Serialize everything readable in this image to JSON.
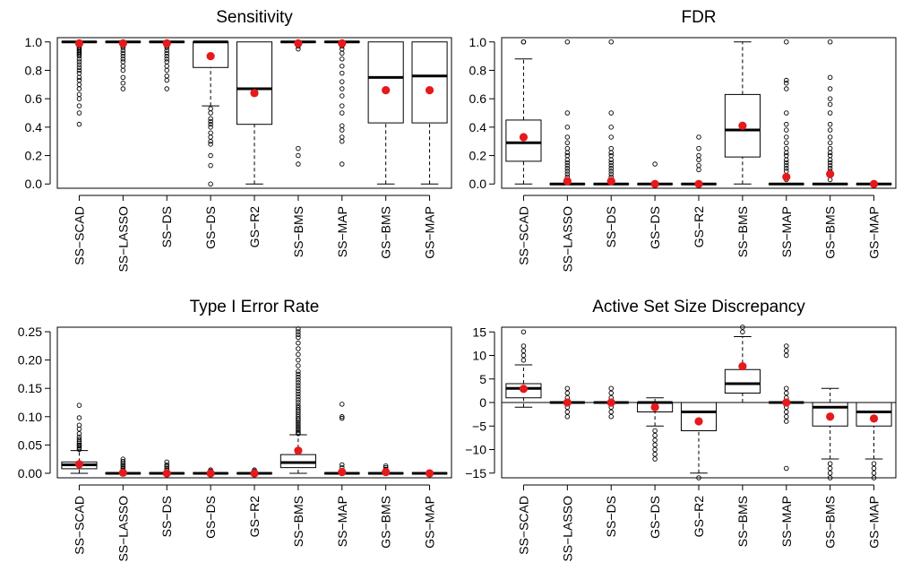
{
  "colors": {
    "box_stroke": "#000000",
    "mean_point": "#e41a1c",
    "outlier": "#000000"
  },
  "chart_data": [
    {
      "type": "boxplot",
      "title": "Sensitivity",
      "categories": [
        "SS−SCAD",
        "SS−LASSO",
        "SS−DS",
        "GS−DS",
        "GS−R2",
        "SS−BMS",
        "SS−MAP",
        "GS−BMS",
        "GS−MAP"
      ],
      "ylim": [
        -0.03,
        1.03
      ],
      "yticks": [
        0.0,
        0.2,
        0.4,
        0.6,
        0.8,
        1.0
      ],
      "ytick_labels": [
        "0.0",
        "0.2",
        "0.4",
        "0.6",
        "0.8",
        "1.0"
      ],
      "reference_line": null,
      "boxes": [
        {
          "lw": 1.0,
          "q1": 1.0,
          "med": 1.0,
          "q3": 1.0,
          "uw": 1.0,
          "mean": 0.99,
          "outliers": [
            0.42,
            0.5,
            0.55,
            0.6,
            0.63,
            0.67,
            0.7,
            0.73,
            0.75,
            0.78,
            0.8,
            0.82,
            0.84,
            0.86,
            0.88,
            0.9,
            0.91,
            0.92,
            0.93,
            0.94,
            0.95,
            0.96,
            0.97,
            0.98,
            0.985,
            0.99,
            0.995
          ]
        },
        {
          "lw": 1.0,
          "q1": 1.0,
          "med": 1.0,
          "q3": 1.0,
          "uw": 1.0,
          "mean": 0.99,
          "outliers": [
            0.67,
            0.71,
            0.75,
            0.8,
            0.83,
            0.86,
            0.88,
            0.9,
            0.92,
            0.94,
            0.96,
            0.97,
            0.98,
            0.99
          ]
        },
        {
          "lw": 1.0,
          "q1": 1.0,
          "med": 1.0,
          "q3": 1.0,
          "uw": 1.0,
          "mean": 0.99,
          "outliers": [
            0.67,
            0.73,
            0.76,
            0.8,
            0.83,
            0.86,
            0.88,
            0.9,
            0.92,
            0.94,
            0.96,
            0.97,
            0.98,
            0.99
          ]
        },
        {
          "lw": 0.55,
          "q1": 0.82,
          "med": 1.0,
          "q3": 1.0,
          "uw": 1.0,
          "mean": 0.9,
          "outliers": [
            0.0,
            0.13,
            0.2,
            0.28,
            0.3,
            0.33,
            0.36,
            0.4,
            0.42,
            0.44,
            0.46,
            0.5,
            0.53
          ]
        },
        {
          "lw": 0.0,
          "q1": 0.42,
          "med": 0.67,
          "q3": 1.0,
          "uw": 1.0,
          "mean": 0.64,
          "outliers": []
        },
        {
          "lw": 1.0,
          "q1": 1.0,
          "med": 1.0,
          "q3": 1.0,
          "uw": 1.0,
          "mean": 0.99,
          "outliers": [
            0.14,
            0.2,
            0.25,
            0.95,
            0.97,
            0.98
          ]
        },
        {
          "lw": 1.0,
          "q1": 1.0,
          "med": 1.0,
          "q3": 1.0,
          "uw": 1.0,
          "mean": 0.99,
          "outliers": [
            0.14,
            0.3,
            0.33,
            0.38,
            0.41,
            0.5,
            0.55,
            0.62,
            0.67,
            0.72,
            0.78,
            0.83,
            0.88,
            0.92,
            0.95,
            0.97,
            0.99
          ]
        },
        {
          "lw": 0.0,
          "q1": 0.43,
          "med": 0.75,
          "q3": 1.0,
          "uw": 1.0,
          "mean": 0.66,
          "outliers": []
        },
        {
          "lw": 0.0,
          "q1": 0.43,
          "med": 0.76,
          "q3": 1.0,
          "uw": 1.0,
          "mean": 0.66,
          "outliers": []
        }
      ]
    },
    {
      "type": "boxplot",
      "title": "FDR",
      "categories": [
        "SS−SCAD",
        "SS−LASSO",
        "SS−DS",
        "GS−DS",
        "GS−R2",
        "SS−BMS",
        "SS−MAP",
        "GS−BMS",
        "GS−MAP"
      ],
      "ylim": [
        -0.03,
        1.03
      ],
      "yticks": [
        0.0,
        0.2,
        0.4,
        0.6,
        0.8,
        1.0
      ],
      "ytick_labels": [
        "0.0",
        "0.2",
        "0.4",
        "0.6",
        "0.8",
        "1.0"
      ],
      "reference_line": null,
      "boxes": [
        {
          "lw": 0.0,
          "q1": 0.16,
          "med": 0.29,
          "q3": 0.45,
          "uw": 0.88,
          "mean": 0.33,
          "outliers": [
            1.0,
            1.0
          ]
        },
        {
          "lw": 0.0,
          "q1": 0.0,
          "med": 0.0,
          "q3": 0.0,
          "uw": 0.0,
          "mean": 0.02,
          "outliers": [
            0.03,
            0.05,
            0.07,
            0.09,
            0.11,
            0.13,
            0.15,
            0.17,
            0.2,
            0.22,
            0.25,
            0.29,
            0.33,
            0.4,
            0.5,
            1.0
          ]
        },
        {
          "lw": 0.0,
          "q1": 0.0,
          "med": 0.0,
          "q3": 0.0,
          "uw": 0.0,
          "mean": 0.02,
          "outliers": [
            0.03,
            0.05,
            0.07,
            0.09,
            0.11,
            0.13,
            0.15,
            0.17,
            0.2,
            0.22,
            0.25,
            0.33,
            0.4,
            0.5,
            1.0
          ]
        },
        {
          "lw": 0.0,
          "q1": 0.0,
          "med": 0.0,
          "q3": 0.0,
          "uw": 0.0,
          "mean": 0.0,
          "outliers": [
            0.14
          ]
        },
        {
          "lw": 0.0,
          "q1": 0.0,
          "med": 0.0,
          "q3": 0.0,
          "uw": 0.0,
          "mean": 0.0,
          "outliers": [
            0.1,
            0.13,
            0.17,
            0.2,
            0.25,
            0.33
          ]
        },
        {
          "lw": 0.0,
          "q1": 0.19,
          "med": 0.38,
          "q3": 0.63,
          "uw": 1.0,
          "mean": 0.41,
          "outliers": []
        },
        {
          "lw": 0.0,
          "q1": 0.0,
          "med": 0.0,
          "q3": 0.0,
          "uw": 0.0,
          "mean": 0.05,
          "outliers": [
            0.03,
            0.06,
            0.09,
            0.11,
            0.13,
            0.15,
            0.17,
            0.2,
            0.22,
            0.25,
            0.29,
            0.33,
            0.38,
            0.42,
            0.5,
            0.67,
            0.71,
            0.73,
            1.0
          ]
        },
        {
          "lw": 0.0,
          "q1": 0.0,
          "med": 0.0,
          "q3": 0.0,
          "uw": 0.0,
          "mean": 0.07,
          "outliers": [
            0.03,
            0.06,
            0.09,
            0.11,
            0.13,
            0.15,
            0.17,
            0.2,
            0.22,
            0.25,
            0.29,
            0.33,
            0.38,
            0.42,
            0.5,
            0.56,
            0.6,
            0.67,
            0.75,
            1.0
          ]
        },
        {
          "lw": 0.0,
          "q1": 0.0,
          "med": 0.0,
          "q3": 0.0,
          "uw": 0.0,
          "mean": 0.0,
          "outliers": []
        }
      ]
    },
    {
      "type": "boxplot",
      "title": "Type I Error Rate",
      "categories": [
        "SS−SCAD",
        "SS−LASSO",
        "SS−DS",
        "GS−DS",
        "GS−R2",
        "SS−BMS",
        "SS−MAP",
        "GS−BMS",
        "GS−MAP"
      ],
      "ylim": [
        -0.008,
        0.258
      ],
      "yticks": [
        0.0,
        0.05,
        0.1,
        0.15,
        0.2,
        0.25
      ],
      "ytick_labels": [
        "0.00",
        "0.05",
        "0.10",
        "0.15",
        "0.20",
        "0.25"
      ],
      "reference_line": null,
      "boxes": [
        {
          "lw": 0.0,
          "q1": 0.008,
          "med": 0.015,
          "q3": 0.02,
          "uw": 0.04,
          "mean": 0.016,
          "outliers": [
            0.042,
            0.045,
            0.048,
            0.05,
            0.053,
            0.056,
            0.06,
            0.064,
            0.07,
            0.078,
            0.085,
            0.098,
            0.12
          ]
        },
        {
          "lw": 0.0,
          "q1": 0.0,
          "med": 0.0,
          "q3": 0.0,
          "uw": 0.0,
          "mean": 0.001,
          "outliers": [
            0.003,
            0.006,
            0.009,
            0.012,
            0.015,
            0.018,
            0.021,
            0.025
          ]
        },
        {
          "lw": 0.0,
          "q1": 0.0,
          "med": 0.0,
          "q3": 0.0,
          "uw": 0.0,
          "mean": 0.0,
          "outliers": [
            0.003,
            0.006,
            0.009,
            0.012,
            0.015,
            0.02
          ]
        },
        {
          "lw": 0.0,
          "q1": 0.0,
          "med": 0.0,
          "q3": 0.0,
          "uw": 0.0,
          "mean": 0.0,
          "outliers": [
            0.002,
            0.004,
            0.006
          ]
        },
        {
          "lw": 0.0,
          "q1": 0.0,
          "med": 0.0,
          "q3": 0.0,
          "uw": 0.0,
          "mean": 0.0,
          "outliers": [
            0.002,
            0.004,
            0.006
          ]
        },
        {
          "lw": 0.0,
          "q1": 0.01,
          "med": 0.019,
          "q3": 0.033,
          "uw": 0.068,
          "mean": 0.04,
          "outliers": [
            0.07,
            0.072,
            0.075,
            0.078,
            0.081,
            0.084,
            0.087,
            0.09,
            0.093,
            0.096,
            0.1,
            0.104,
            0.108,
            0.112,
            0.116,
            0.12,
            0.125,
            0.13,
            0.135,
            0.14,
            0.145,
            0.15,
            0.155,
            0.16,
            0.165,
            0.17,
            0.175,
            0.18,
            0.19,
            0.2,
            0.21,
            0.22,
            0.23,
            0.24,
            0.245,
            0.25,
            0.255
          ]
        },
        {
          "lw": 0.0,
          "q1": 0.0,
          "med": 0.0,
          "q3": 0.0,
          "uw": 0.0,
          "mean": 0.002,
          "outliers": [
            0.005,
            0.01,
            0.015,
            0.097,
            0.1,
            0.122
          ]
        },
        {
          "lw": 0.0,
          "q1": 0.0,
          "med": 0.0,
          "q3": 0.0,
          "uw": 0.0,
          "mean": 0.002,
          "outliers": [
            0.004,
            0.007,
            0.01,
            0.013
          ]
        },
        {
          "lw": 0.0,
          "q1": 0.0,
          "med": 0.0,
          "q3": 0.0,
          "uw": 0.0,
          "mean": 0.0,
          "outliers": []
        }
      ]
    },
    {
      "type": "boxplot",
      "title": "Active Set Size Discrepancy",
      "categories": [
        "SS−SCAD",
        "SS−LASSO",
        "SS−DS",
        "GS−DS",
        "GS−R2",
        "SS−BMS",
        "SS−MAP",
        "GS−BMS",
        "GS−MAP"
      ],
      "ylim": [
        -16,
        16
      ],
      "yticks": [
        -15,
        -10,
        -5,
        0,
        5,
        10,
        15
      ],
      "ytick_labels": [
        "−15",
        "−10",
        "−5",
        "0",
        "5",
        "10",
        "15"
      ],
      "reference_line": 0,
      "boxes": [
        {
          "lw": -1,
          "q1": 1,
          "med": 3,
          "q3": 4,
          "uw": 8,
          "mean": 2.9,
          "outliers": [
            9,
            10,
            11,
            12,
            15
          ]
        },
        {
          "lw": 0,
          "q1": 0,
          "med": 0,
          "q3": 0,
          "uw": 0,
          "mean": 0,
          "outliers": [
            -3,
            -2,
            -1,
            1,
            2,
            3
          ]
        },
        {
          "lw": 0,
          "q1": 0,
          "med": 0,
          "q3": 0,
          "uw": 0,
          "mean": 0,
          "outliers": [
            -3,
            -2,
            -1,
            1,
            2,
            3
          ]
        },
        {
          "lw": -5,
          "q1": -2,
          "med": 0,
          "q3": 0,
          "uw": 1,
          "mean": -1,
          "outliers": [
            -6,
            -7,
            -8,
            -9,
            -10,
            -11,
            -12
          ]
        },
        {
          "lw": -15,
          "q1": -6,
          "med": -2,
          "q3": 0,
          "uw": 0,
          "mean": -4,
          "outliers": [
            -16
          ]
        },
        {
          "lw": 0,
          "q1": 2,
          "med": 4,
          "q3": 7,
          "uw": 14,
          "mean": 7.7,
          "outliers": [
            15,
            16
          ]
        },
        {
          "lw": 0,
          "q1": 0,
          "med": 0,
          "q3": 0,
          "uw": 0,
          "mean": 0,
          "outliers": [
            -14,
            -4,
            -3,
            -2,
            -1,
            1,
            2,
            3,
            10,
            11,
            12
          ]
        },
        {
          "lw": -12,
          "q1": -5,
          "med": -1,
          "q3": 0,
          "uw": 3,
          "mean": -3,
          "outliers": [
            -13,
            -14,
            -15,
            -16
          ]
        },
        {
          "lw": -12,
          "q1": -5,
          "med": -2,
          "q3": 0,
          "uw": 0,
          "mean": -3.4,
          "outliers": [
            -13,
            -14,
            -15,
            -16
          ]
        }
      ]
    }
  ]
}
